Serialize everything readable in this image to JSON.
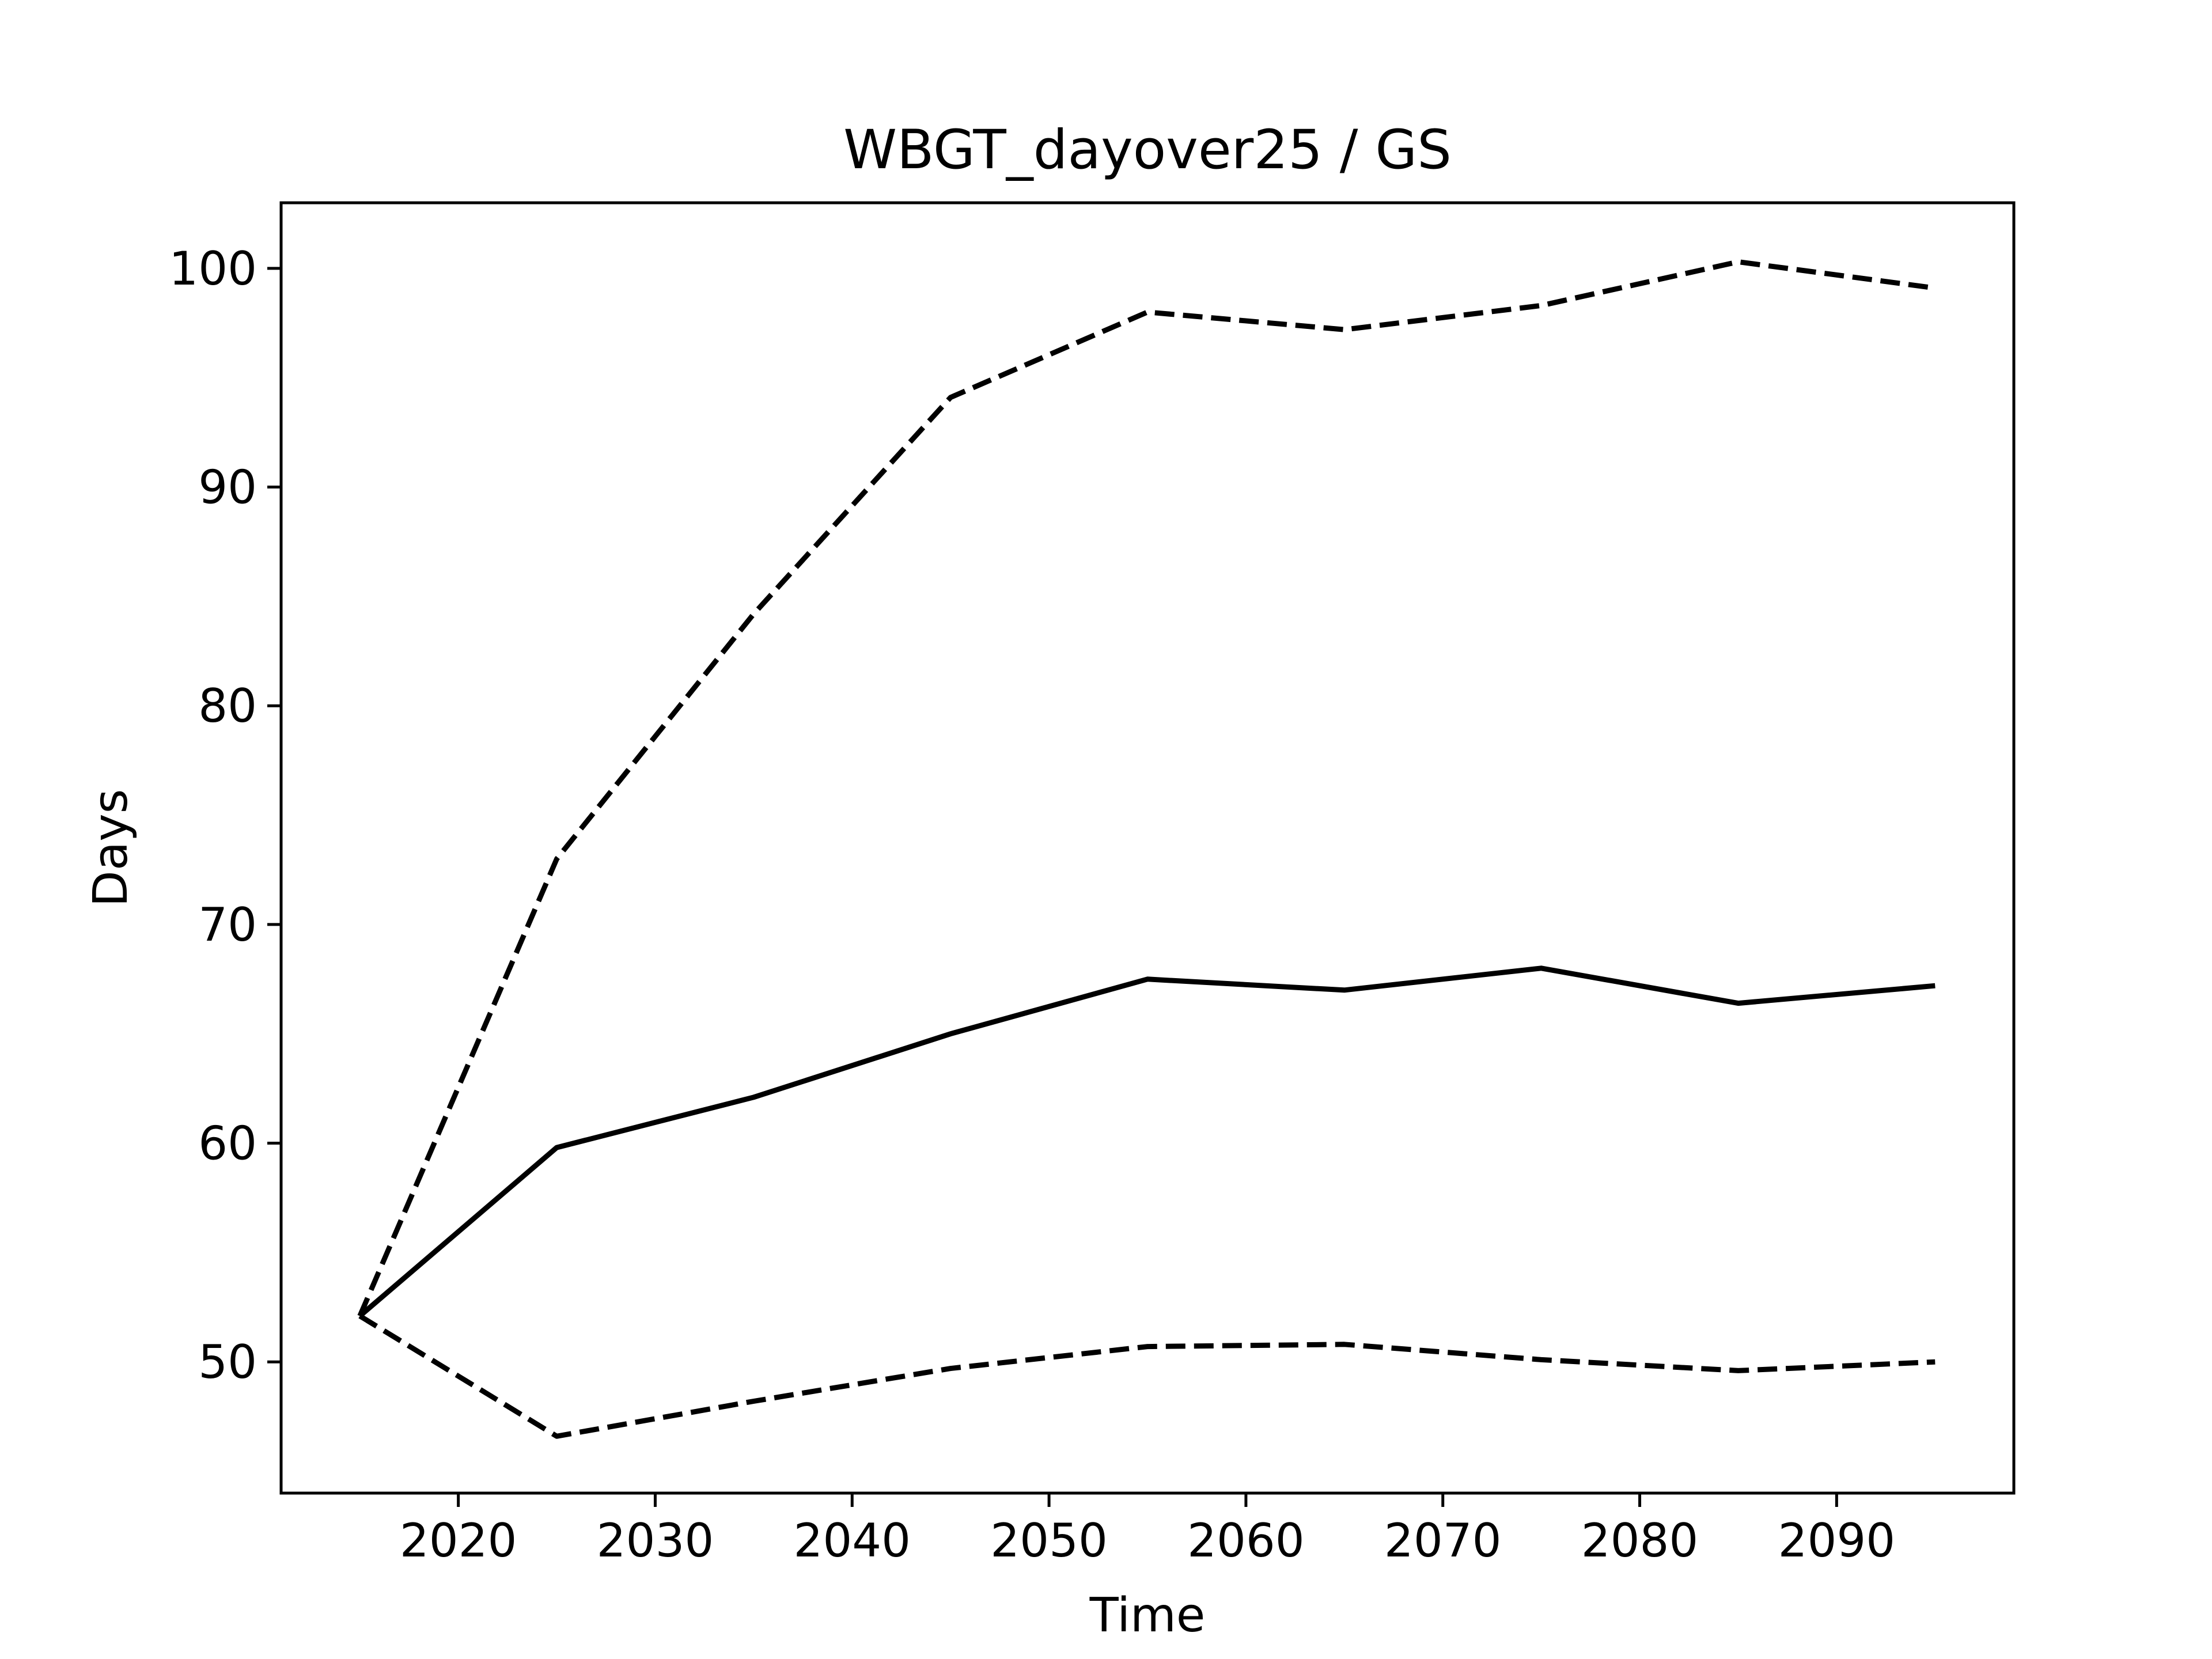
{
  "chart_data": {
    "type": "line",
    "title": "WBGT_dayover25 / GS",
    "xlabel": "Time",
    "ylabel": "Days",
    "xlim": [
      2011,
      2099
    ],
    "ylim": [
      44,
      103
    ],
    "xticks": [
      2020,
      2030,
      2040,
      2050,
      2060,
      2070,
      2080,
      2090
    ],
    "yticks": [
      50,
      60,
      70,
      80,
      90,
      100
    ],
    "x": [
      2015,
      2025,
      2035,
      2045,
      2055,
      2065,
      2075,
      2085,
      2095
    ],
    "grid": false,
    "legend": "none",
    "series": [
      {
        "style": "solid",
        "color": "#000000",
        "values": [
          52.1,
          59.8,
          62.1,
          65.0,
          67.5,
          67.0,
          68.0,
          66.4,
          67.2
        ]
      },
      {
        "style": "dashed",
        "color": "#000000",
        "values": [
          52.1,
          73.0,
          84.2,
          94.1,
          98.0,
          97.2,
          98.3,
          100.3,
          99.1
        ]
      },
      {
        "style": "dashed",
        "color": "#000000",
        "values": [
          52.1,
          46.6,
          48.2,
          49.7,
          50.7,
          50.8,
          50.1,
          49.6,
          50.0
        ]
      }
    ]
  }
}
